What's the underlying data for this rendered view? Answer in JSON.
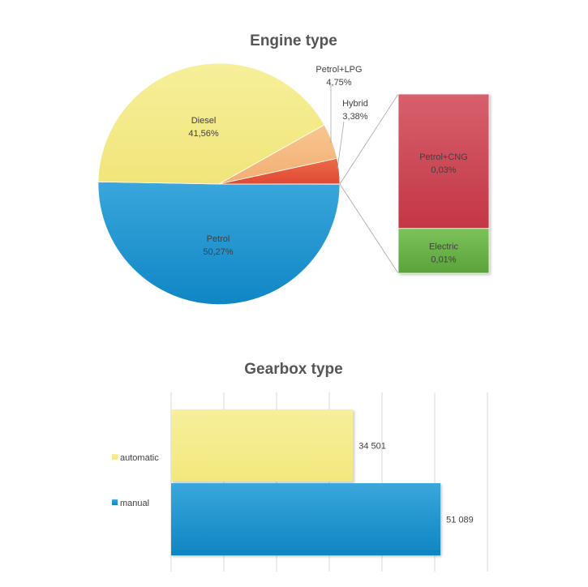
{
  "chart_data": [
    {
      "type": "pie",
      "variant": "bar-of-pie",
      "title": "Engine type",
      "slices": [
        {
          "label": "Petrol",
          "value": 50.27,
          "value_label": "50,27%",
          "color": "#1a92cf"
        },
        {
          "label": "Diesel",
          "value": 41.56,
          "value_label": "41,56%",
          "color": "#f4ea87"
        },
        {
          "label": "Petrol+LPG",
          "value": 4.75,
          "value_label": "4,75%",
          "color": "#f5b87f"
        },
        {
          "label": "Hybrid",
          "value": 3.38,
          "value_label": "3,38%",
          "color": "#e5553a"
        }
      ],
      "secondary_stack": [
        {
          "label": "Petrol+CNG",
          "value": 0.03,
          "value_label": "0,03%",
          "color": "#cc4150"
        },
        {
          "label": "Electric",
          "value": 0.01,
          "value_label": "0,01%",
          "color": "#6db449"
        }
      ]
    },
    {
      "type": "bar",
      "orientation": "horizontal",
      "title": "Gearbox type",
      "categories": [
        "automatic",
        "manual"
      ],
      "values": [
        34501,
        51089
      ],
      "value_labels": [
        "34 501",
        "51 089"
      ],
      "colors": [
        "#f4ea87",
        "#1a92cf"
      ],
      "xlim": [
        0,
        60000
      ],
      "grid": true,
      "legend": "left"
    }
  ]
}
